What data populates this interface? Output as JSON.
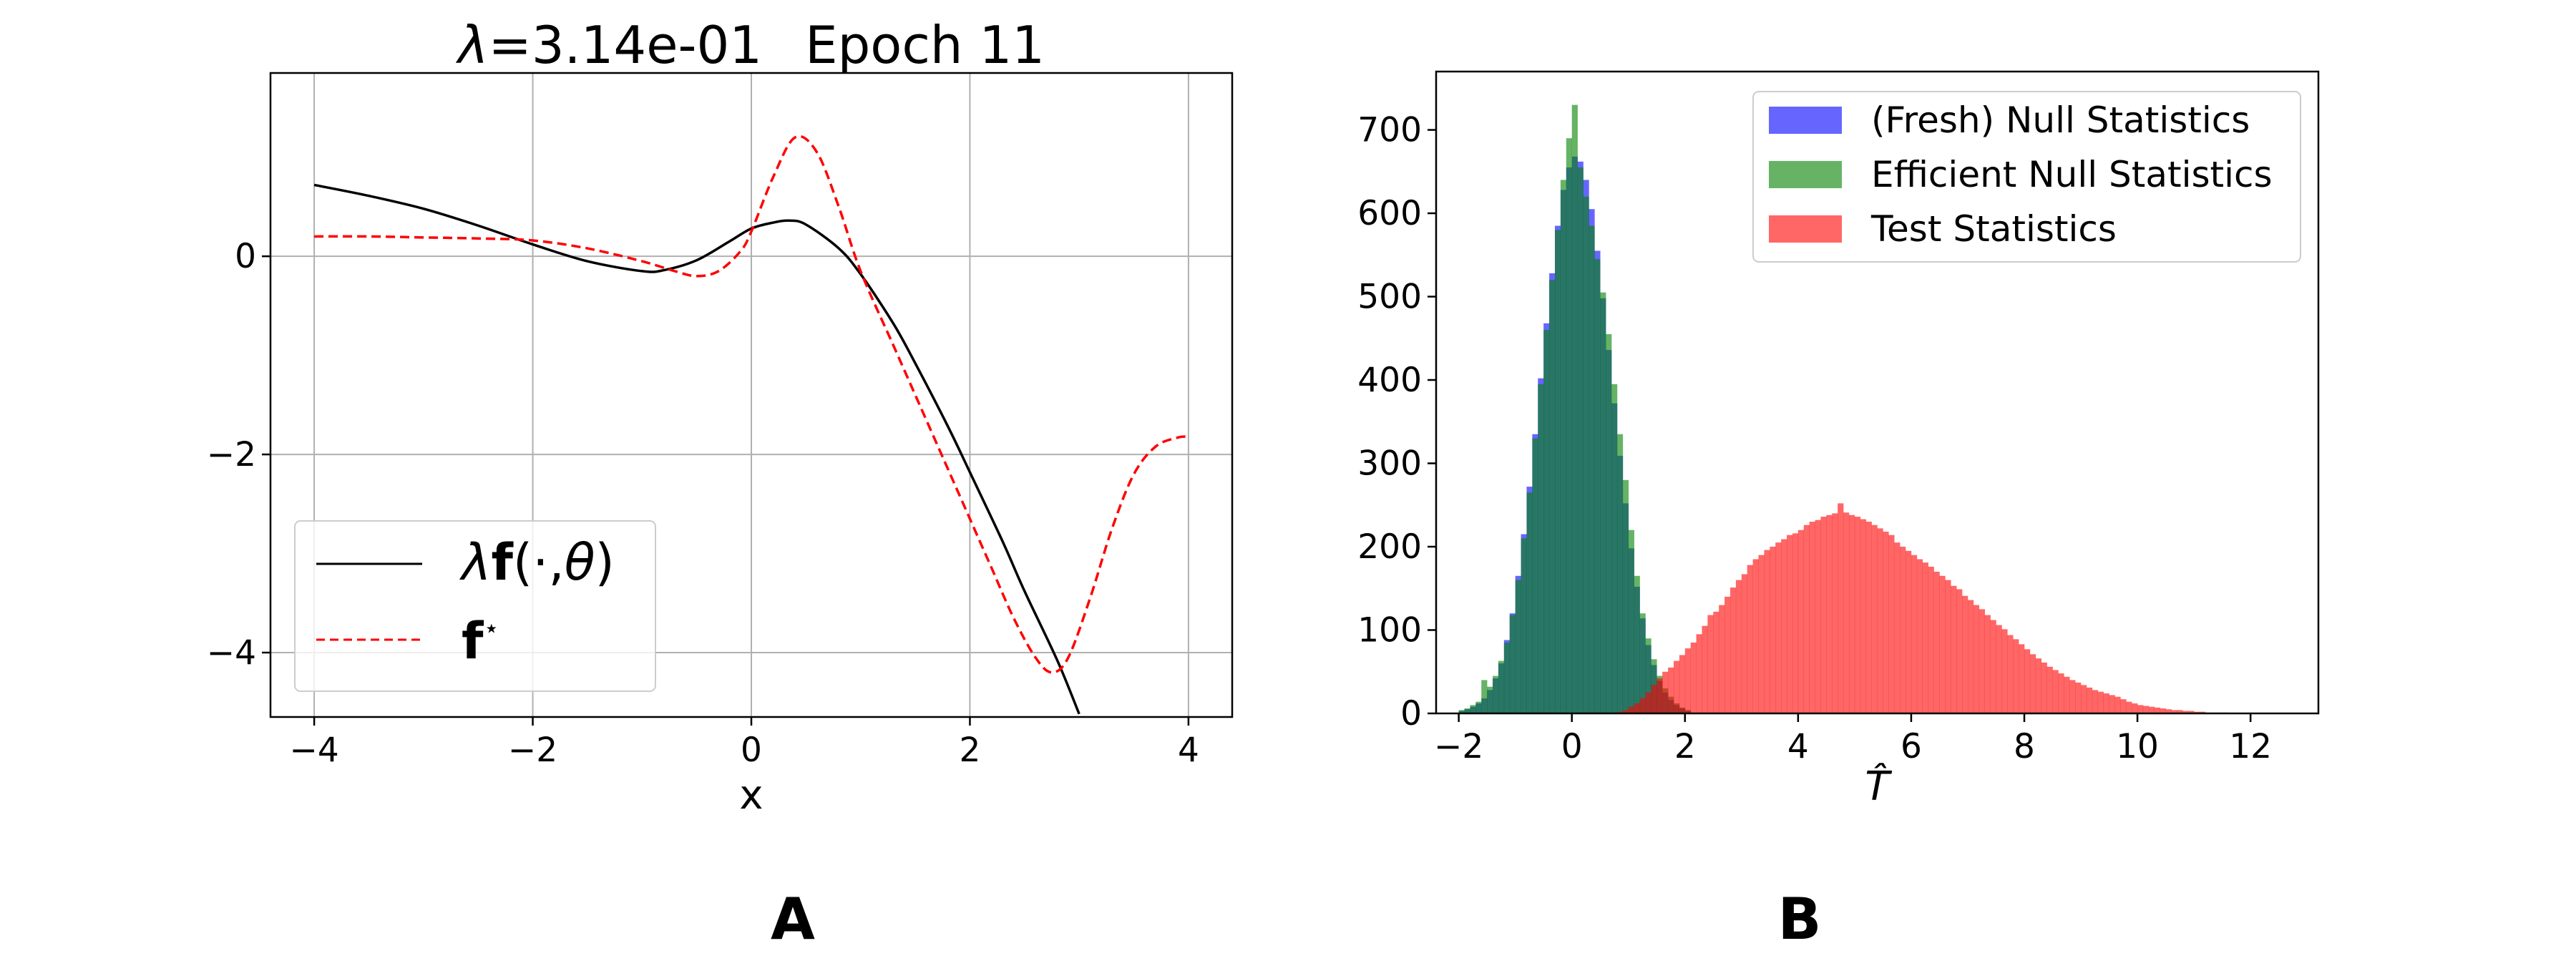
{
  "panels": {
    "left_label": "A",
    "right_label": "B"
  },
  "chart_data": [
    {
      "type": "line",
      "title": {
        "symbol": "λ",
        "value": "=3.14e-01",
        "epoch": "Epoch 11"
      },
      "xlabel": "x",
      "ylabel": "",
      "xlim": [
        -4.4,
        4.4
      ],
      "ylim": [
        -4.65,
        1.85
      ],
      "xticks": [
        -4,
        -2,
        0,
        2,
        4
      ],
      "xtick_labels": [
        "−4",
        "−2",
        "0",
        "2",
        "4"
      ],
      "yticks": [
        0,
        -2,
        -4
      ],
      "ytick_labels": [
        "0",
        "−2",
        "−4"
      ],
      "grid": true,
      "legend_position": "lower-left",
      "series": [
        {
          "name": "λf(·,θ)",
          "label_parts": {
            "lambda": "λ",
            "f": "f",
            "args": "(·,",
            "theta": "θ",
            "close": ")"
          },
          "color": "#000000",
          "style": "solid",
          "x": [
            -4.0,
            -3.5,
            -3.0,
            -2.5,
            -2.0,
            -1.5,
            -1.0,
            -0.8,
            -0.5,
            -0.2,
            0.0,
            0.2,
            0.35,
            0.5,
            0.8,
            1.0,
            1.3,
            1.5,
            1.8,
            2.0,
            2.3,
            2.5,
            2.8,
            3.0
          ],
          "y": [
            0.72,
            0.61,
            0.48,
            0.31,
            0.12,
            -0.05,
            -0.15,
            -0.14,
            -0.04,
            0.15,
            0.28,
            0.34,
            0.36,
            0.32,
            0.08,
            -0.18,
            -0.68,
            -1.08,
            -1.72,
            -2.18,
            -2.88,
            -3.38,
            -4.08,
            -4.62
          ]
        },
        {
          "name": "f⋆",
          "label_parts": {
            "f": "f",
            "star": "⋆"
          },
          "color": "#ff0000",
          "style": "dashed",
          "x": [
            -4.0,
            -3.5,
            -3.0,
            -2.5,
            -2.0,
            -1.5,
            -1.0,
            -0.7,
            -0.5,
            -0.3,
            -0.1,
            0.0,
            0.2,
            0.4,
            0.6,
            0.8,
            1.0,
            1.3,
            1.5,
            1.8,
            2.0,
            2.2,
            2.4,
            2.6,
            2.75,
            2.9,
            3.1,
            3.3,
            3.5,
            3.7,
            3.9,
            4.0
          ],
          "y": [
            0.2,
            0.2,
            0.19,
            0.18,
            0.16,
            0.08,
            -0.05,
            -0.15,
            -0.2,
            -0.15,
            0.05,
            0.25,
            0.8,
            1.2,
            1.05,
            0.5,
            -0.15,
            -0.9,
            -1.4,
            -2.15,
            -2.65,
            -3.15,
            -3.65,
            -4.05,
            -4.2,
            -4.05,
            -3.45,
            -2.75,
            -2.2,
            -1.92,
            -1.83,
            -1.82
          ]
        }
      ]
    },
    {
      "type": "histogram",
      "title": "",
      "xlabel": "T̂",
      "ylabel": "",
      "xlim": [
        -2.4,
        13.2
      ],
      "ylim": [
        0,
        770
      ],
      "xticks": [
        -2,
        0,
        2,
        4,
        6,
        8,
        10,
        12
      ],
      "xtick_labels": [
        "−2",
        "0",
        "2",
        "4",
        "6",
        "8",
        "10",
        "12"
      ],
      "yticks": [
        0,
        100,
        200,
        300,
        400,
        500,
        600,
        700
      ],
      "ytick_labels": [
        "0",
        "100",
        "200",
        "300",
        "400",
        "500",
        "600",
        "700"
      ],
      "grid": false,
      "legend_position": "top-right",
      "series": [
        {
          "name": "(Fresh) Null Statistics",
          "color": "#0000ff",
          "alpha": 0.6,
          "bin_start": -2.0,
          "bin_width": 0.1,
          "values": [
            3,
            5,
            8,
            12,
            18,
            28,
            42,
            60,
            88,
            120,
            165,
            215,
            272,
            335,
            402,
            468,
            528,
            585,
            628,
            655,
            668,
            662,
            640,
            605,
            555,
            498,
            436,
            372,
            309,
            252,
            198,
            152,
            114,
            82,
            58,
            39,
            25,
            16,
            10,
            6,
            3
          ]
        },
        {
          "name": "Efficient Null Statistics",
          "color": "#008000",
          "alpha": 0.6,
          "bin_start": -2.0,
          "bin_width": 0.1,
          "values": [
            4,
            6,
            10,
            14,
            40,
            32,
            45,
            63,
            85,
            118,
            160,
            210,
            265,
            330,
            395,
            460,
            520,
            580,
            640,
            690,
            730,
            655,
            620,
            585,
            545,
            505,
            455,
            395,
            335,
            280,
            220,
            165,
            120,
            90,
            65,
            45,
            30,
            20,
            12,
            7,
            4
          ]
        },
        {
          "name": "Test Statistics",
          "color": "#ff0000",
          "alpha": 0.6,
          "bin_start": 0.8,
          "bin_width": 0.1,
          "values": [
            2,
            4,
            8,
            12,
            18,
            25,
            34,
            42,
            50,
            55,
            63,
            70,
            78,
            85,
            95,
            105,
            118,
            122,
            130,
            140,
            151,
            160,
            167,
            178,
            185,
            190,
            196,
            200,
            205,
            209,
            214,
            216,
            220,
            226,
            230,
            232,
            236,
            238,
            240,
            252,
            241,
            238,
            236,
            233,
            230,
            226,
            222,
            218,
            214,
            205,
            200,
            195,
            190,
            185,
            181,
            176,
            170,
            165,
            160,
            153,
            149,
            141,
            136,
            130,
            125,
            118,
            112,
            106,
            101,
            94,
            89,
            83,
            77,
            71,
            66,
            61,
            56,
            52,
            48,
            44,
            40,
            37,
            34,
            31,
            28,
            26,
            24,
            22,
            20,
            17,
            14,
            12,
            10,
            9,
            8,
            7,
            6,
            5,
            4,
            4,
            3,
            3,
            2,
            2,
            1,
            1,
            1,
            1
          ]
        }
      ]
    }
  ]
}
